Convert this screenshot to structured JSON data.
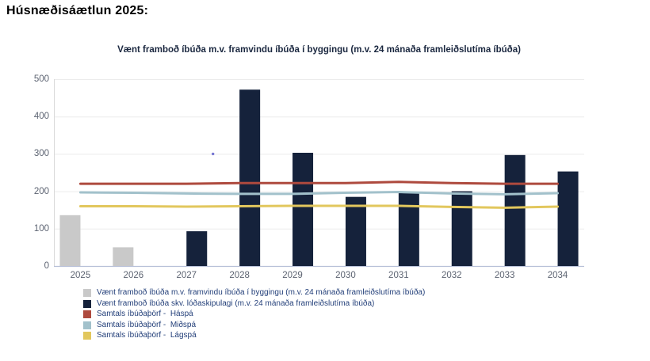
{
  "page": {
    "title": "Húsnæðisáætlun 2025:"
  },
  "chart_data": {
    "type": "bar",
    "title": "Vænt framboð íbúða m.v. framvindu íbúða í byggingu (m.v. 24 mánaða framleiðslutíma íbúða)",
    "categories": [
      "2025",
      "2026",
      "2027",
      "2028",
      "2029",
      "2030",
      "2031",
      "2032",
      "2033",
      "2034"
    ],
    "series": [
      {
        "key": "framvinda",
        "name": "Vænt framboð íbúða m.v. framvindu íbúða í byggingu (m.v. 24 mánaða framleiðslutíma íbúða)",
        "type": "bar",
        "color": "#c9c9c9",
        "values": [
          136,
          50,
          null,
          null,
          null,
          null,
          null,
          null,
          null,
          null
        ]
      },
      {
        "key": "lodaskipulag",
        "name": "Vænt framboð íbúða skv. lóðaskipulagi (m.v. 24 mánaða framleiðslutíma íbúða)",
        "type": "bar",
        "color": "#15223b",
        "values": [
          null,
          null,
          93,
          472,
          303,
          185,
          198,
          200,
          297,
          253
        ]
      },
      {
        "key": "haspa",
        "name": "Samtals íbúðaþörf -  Háspá",
        "type": "line",
        "color": "#ae4a3e",
        "values": [
          220,
          220,
          220,
          222,
          222,
          222,
          225,
          222,
          220,
          220
        ]
      },
      {
        "key": "midspa",
        "name": "Samtals íbúðaþörf -  Miðspá",
        "type": "line",
        "color": "#a2c1cb",
        "values": [
          197,
          196,
          194,
          193,
          193,
          196,
          198,
          194,
          192,
          195
        ]
      },
      {
        "key": "lagspa",
        "name": "Samtals íbúðaþörf -  Lágspá",
        "type": "line",
        "color": "#e2c75d",
        "values": [
          160,
          160,
          159,
          160,
          161,
          161,
          161,
          158,
          156,
          159
        ]
      }
    ],
    "ylim": [
      0,
      500
    ],
    "y_ticks": [
      0,
      100,
      200,
      300,
      400,
      500
    ],
    "grid": true,
    "legend_position": "bottom-left",
    "stray_dot": {
      "x_between": [
        "2027",
        "2028"
      ],
      "value": 300,
      "color": "#5353c8"
    },
    "colors": {
      "gridline": "#ececec",
      "y_axis_line": "#d9d9d9",
      "x_axis_line": "#b7c0d8",
      "tick_text": "#5d6472",
      "legend_text": "#24407a",
      "title_text": "#1b2840"
    }
  }
}
